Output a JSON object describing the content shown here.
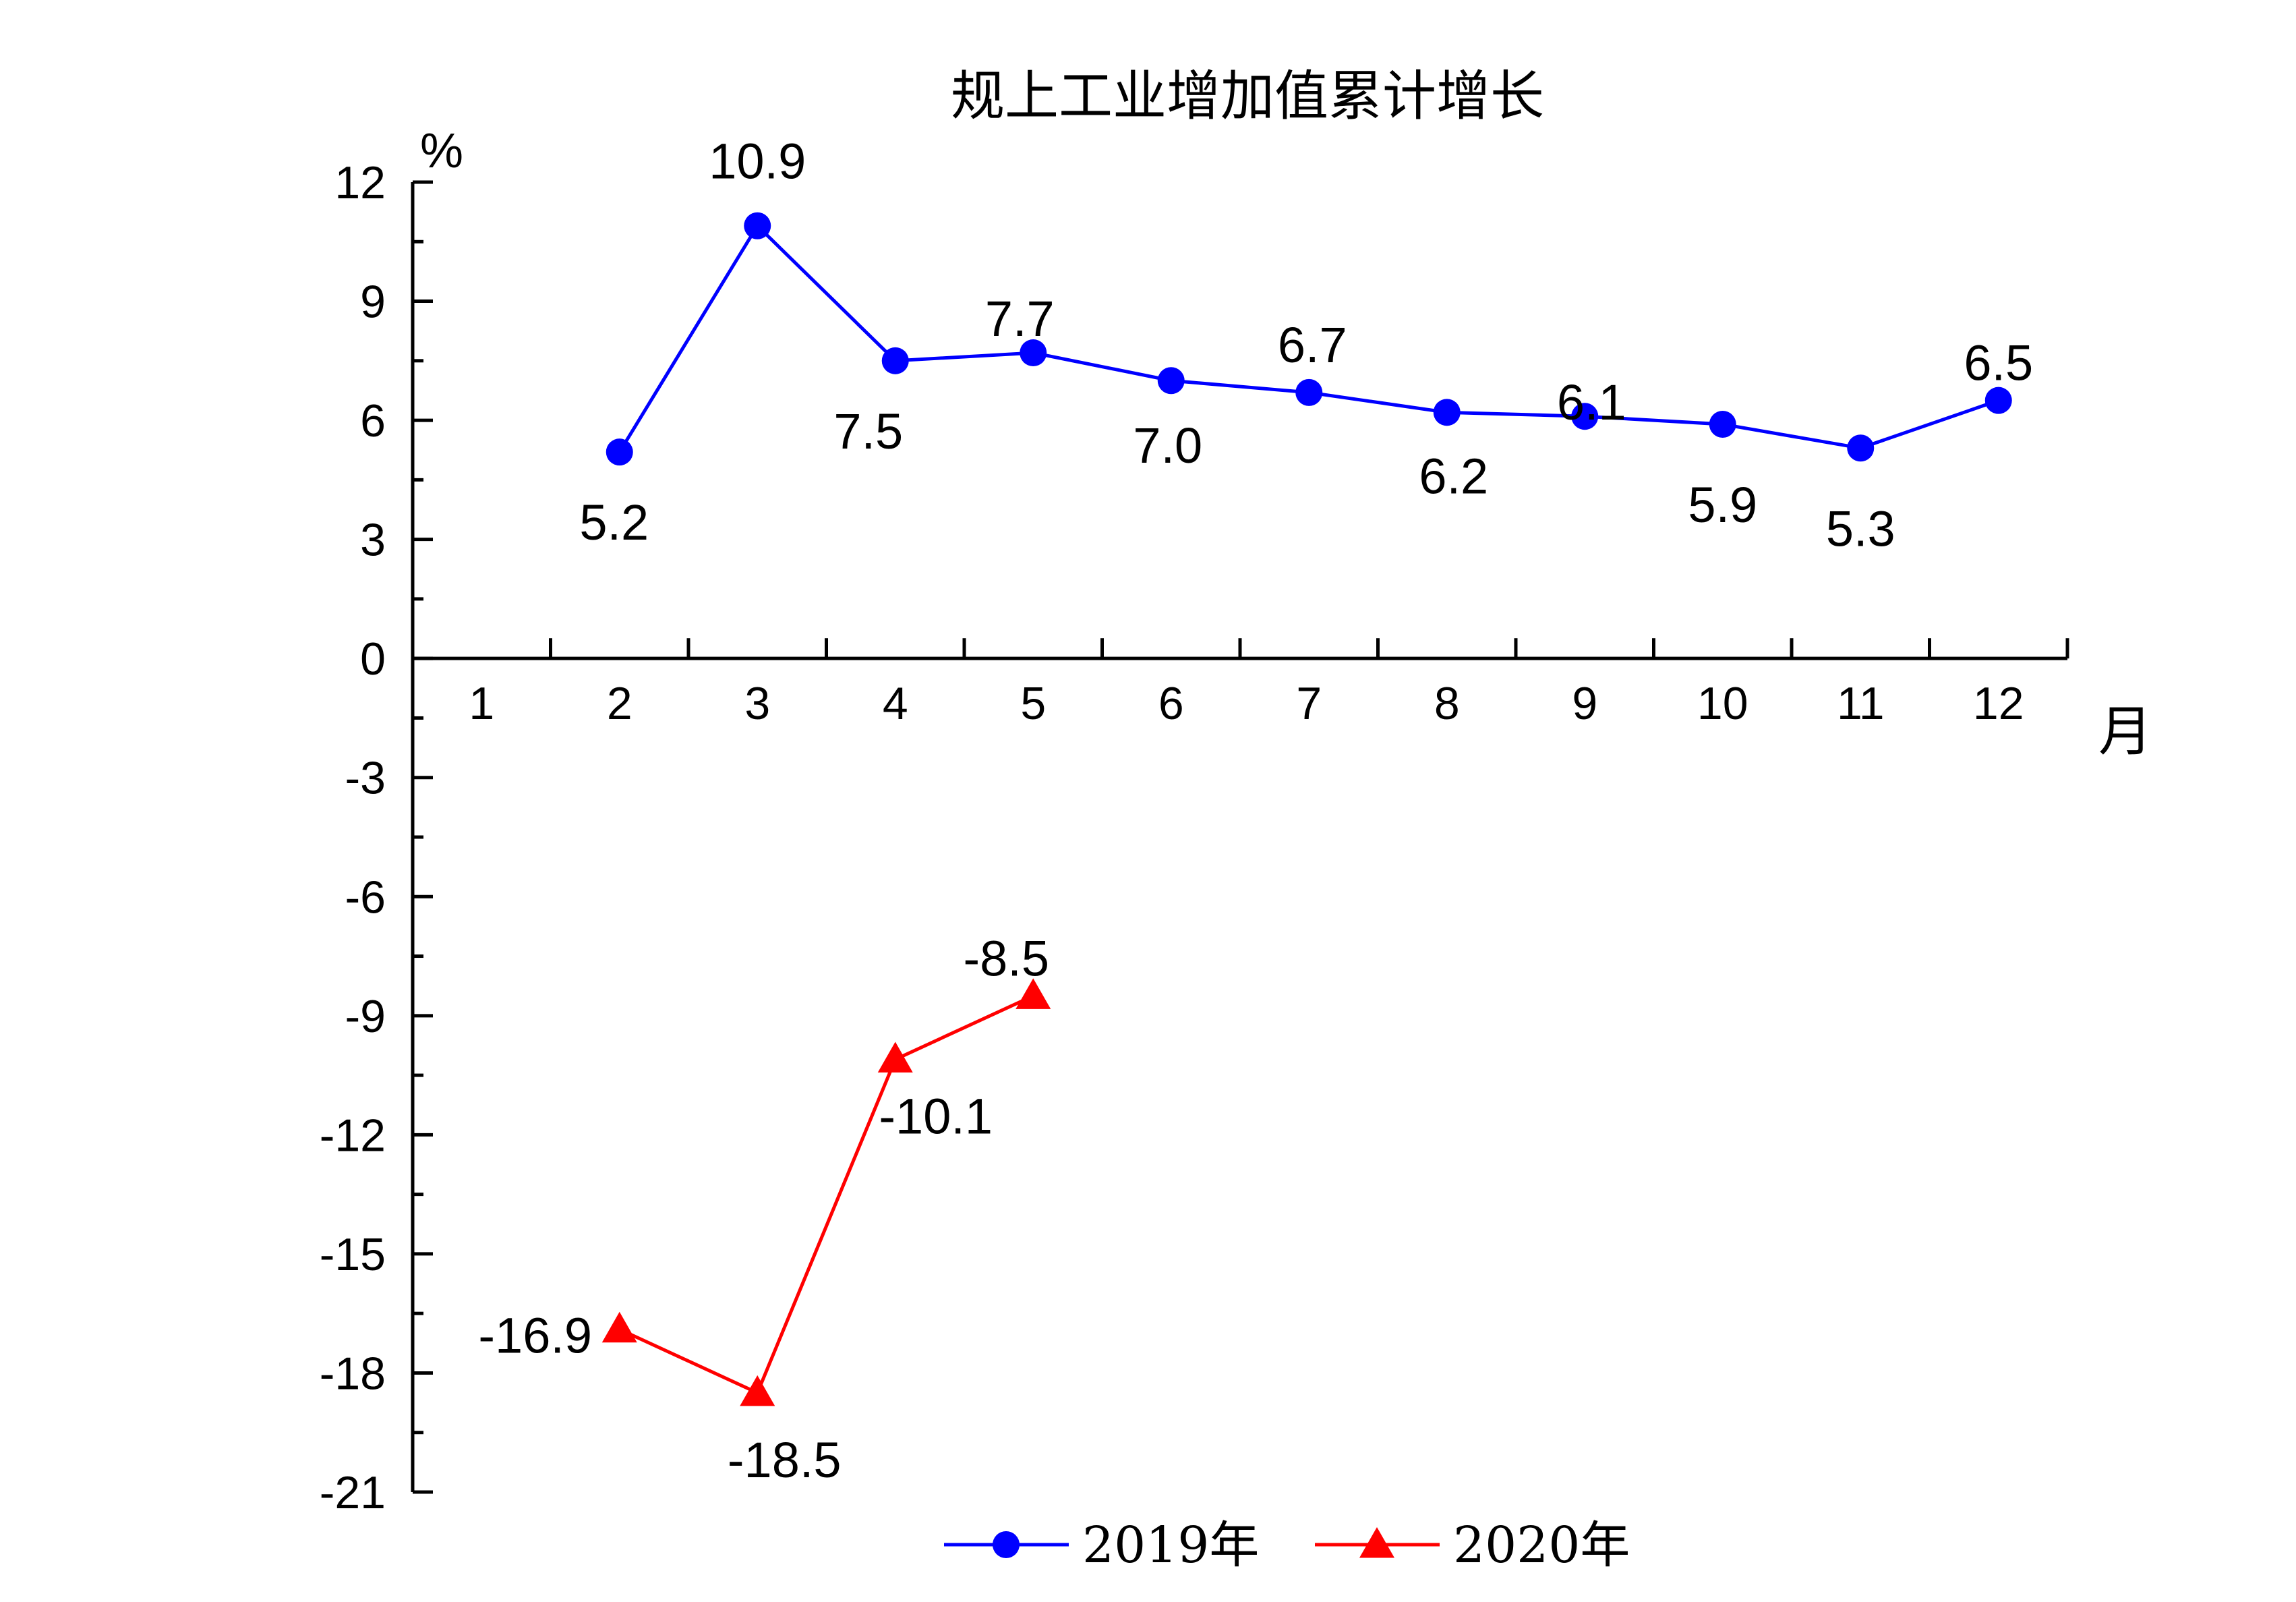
{
  "chart_data": {
    "type": "line",
    "title": "规上工业增加值累计增长",
    "ylabel": "%",
    "xlabel": "月",
    "x": [
      1,
      2,
      3,
      4,
      5,
      6,
      7,
      8,
      9,
      10,
      11,
      12
    ],
    "x_tick_labels": [
      "1",
      "2",
      "3",
      "4",
      "5",
      "6",
      "7",
      "8",
      "9",
      "10",
      "11",
      "12"
    ],
    "ylim": [
      -21,
      12
    ],
    "y_ticks": [
      12,
      9,
      6,
      3,
      0,
      -3,
      -6,
      -9,
      -12,
      -15,
      -18,
      -21
    ],
    "y_tick_labels": [
      "12",
      "9",
      "6",
      "3",
      "0",
      "-3",
      "-6",
      "-9",
      "-12",
      "-15",
      "-18",
      "-21"
    ],
    "grid": false,
    "legend_position": "bottom",
    "series": [
      {
        "name": "2019年",
        "color": "#0000ff",
        "marker": "circle",
        "x": [
          2,
          3,
          4,
          5,
          6,
          7,
          8,
          9,
          10,
          11,
          12
        ],
        "values": [
          5.2,
          10.9,
          7.5,
          7.7,
          7.0,
          6.7,
          6.2,
          6.1,
          5.9,
          5.3,
          6.5
        ],
        "labels": [
          "5.2",
          "10.9",
          "7.5",
          "7.7",
          "7.0",
          "6.7",
          "6.2",
          "6.1",
          "5.9",
          "5.3",
          "6.5"
        ]
      },
      {
        "name": "2020年",
        "color": "#ff0000",
        "marker": "triangle",
        "x": [
          2,
          3,
          4,
          5
        ],
        "values": [
          -16.9,
          -18.5,
          -10.1,
          -8.5
        ],
        "labels": [
          "-16.9",
          "-18.5",
          "-10.1",
          "-8.5"
        ]
      }
    ]
  }
}
